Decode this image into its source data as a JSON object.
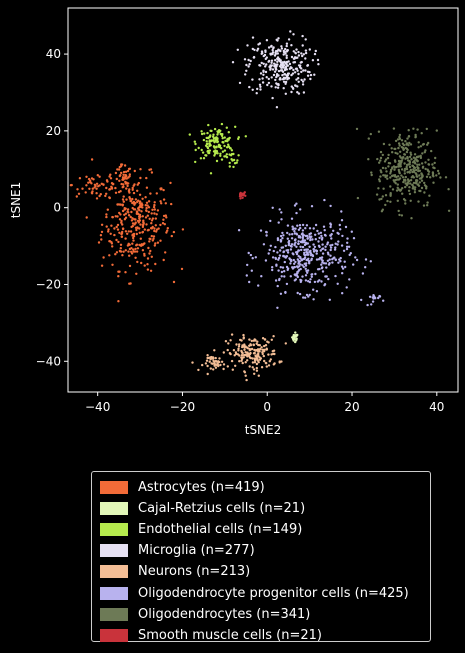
{
  "chart_data": {
    "type": "scatter",
    "xlabel": "tSNE2",
    "ylabel": "tSNE1",
    "xlim": [
      -47,
      45
    ],
    "ylim": [
      -48,
      52
    ],
    "xticks": [
      -40,
      -20,
      0,
      20,
      40
    ],
    "yticks": [
      -40,
      -20,
      0,
      20,
      40
    ],
    "legend_placement": "below",
    "series": [
      {
        "name": "Astrocytes (n=419)",
        "color": "#f26b38",
        "clusters": [
          {
            "cx": -31,
            "cy": -4,
            "sx": 4.0,
            "sy": 6.0,
            "n": 330
          },
          {
            "cx": -40,
            "cy": 6,
            "sx": 3.0,
            "sy": 2.0,
            "n": 50
          },
          {
            "cx": -34,
            "cy": 7,
            "sx": 1.0,
            "sy": 2.0,
            "n": 39
          }
        ]
      },
      {
        "name": "Cajal-Retzius cells (n=21)",
        "color": "#e2f7b8",
        "clusters": [
          {
            "cx": 6.5,
            "cy": -34,
            "sx": 0.4,
            "sy": 0.6,
            "n": 21
          }
        ]
      },
      {
        "name": "Endothelial cells (n=149)",
        "color": "#b5ea4d",
        "clusters": [
          {
            "cx": -12,
            "cy": 17,
            "sx": 2.2,
            "sy": 2.0,
            "n": 135
          },
          {
            "cx": -8.5,
            "cy": 12,
            "sx": 1.0,
            "sy": 1.2,
            "n": 14
          }
        ]
      },
      {
        "name": "Microglia (n=277)",
        "color": "#e6e0f2",
        "clusters": [
          {
            "cx": 3,
            "cy": 37,
            "sx": 3.8,
            "sy": 3.8,
            "n": 277
          }
        ]
      },
      {
        "name": "Neurons (n=213)",
        "color": "#f3bd95",
        "clusters": [
          {
            "cx": -3.5,
            "cy": -38,
            "sx": 3.0,
            "sy": 2.2,
            "n": 170
          },
          {
            "cx": -12,
            "cy": -40.5,
            "sx": 1.5,
            "sy": 1.0,
            "n": 43
          }
        ]
      },
      {
        "name": "Oligodendrocyte progenitor cells (n=425)",
        "color": "#b8b2ee",
        "clusters": [
          {
            "cx": 9,
            "cy": -12,
            "sx": 5.2,
            "sy": 4.8,
            "n": 410
          },
          {
            "cx": 24.5,
            "cy": -24,
            "sx": 1.0,
            "sy": 0.8,
            "n": 15
          }
        ]
      },
      {
        "name": "Oligodendrocytes (n=341)",
        "color": "#6d7a56",
        "clusters": [
          {
            "cx": 33,
            "cy": 10,
            "sx": 3.5,
            "sy": 5.0,
            "n": 341
          }
        ]
      },
      {
        "name": "Smooth muscle cells (n=21)",
        "color": "#c9333b",
        "clusters": [
          {
            "cx": -6,
            "cy": 3.5,
            "sx": 0.3,
            "sy": 0.5,
            "n": 21
          }
        ]
      }
    ]
  }
}
